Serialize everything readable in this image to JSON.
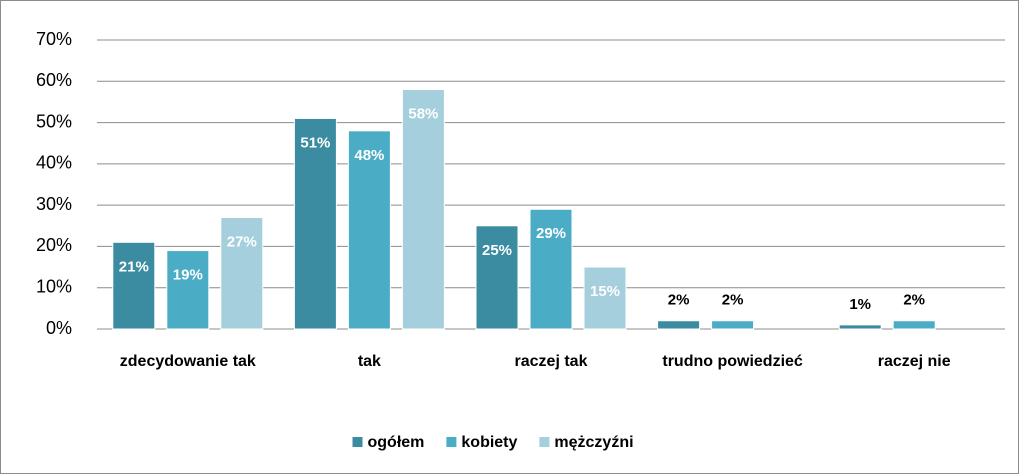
{
  "chart_data": {
    "type": "bar",
    "categories": [
      "zdecydowanie tak",
      "tak",
      "raczej tak",
      "trudno powiedzieć",
      "raczej nie"
    ],
    "series": [
      {
        "name": "ogółem",
        "color": "#3b8ba1",
        "values": [
          21,
          51,
          25,
          2,
          1
        ],
        "value_labels": [
          "21%",
          "51%",
          "25%",
          "2%",
          "1%"
        ]
      },
      {
        "name": "kobiety",
        "color": "#4bacc6",
        "values": [
          19,
          48,
          29,
          2,
          2
        ],
        "value_labels": [
          "19%",
          "48%",
          "29%",
          "2%",
          "2%"
        ]
      },
      {
        "name": "mężczyźni",
        "color": "#a5cfdc",
        "values": [
          27,
          58,
          15,
          null,
          null
        ],
        "value_labels": [
          "27%",
          "58%",
          "15%",
          null,
          null
        ]
      }
    ],
    "ylim": [
      0,
      70
    ],
    "yticks": [
      {
        "value": 0,
        "label": "0%"
      },
      {
        "value": 10,
        "label": "10%"
      },
      {
        "value": 20,
        "label": "20%"
      },
      {
        "value": 30,
        "label": "30%"
      },
      {
        "value": 40,
        "label": "40%"
      },
      {
        "value": 50,
        "label": "50%"
      },
      {
        "value": 60,
        "label": "60%"
      },
      {
        "value": 70,
        "label": "70%"
      }
    ],
    "grid": true,
    "legend": "bottom"
  }
}
